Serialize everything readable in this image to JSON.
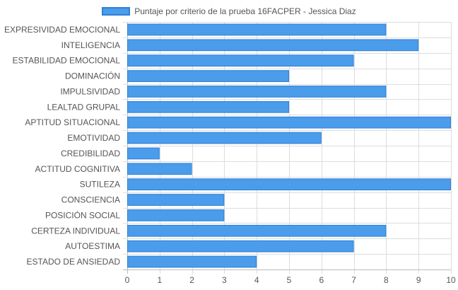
{
  "chart_data": {
    "type": "bar",
    "orientation": "horizontal",
    "legend": {
      "position": "top",
      "label": "Puntaje por criterio de la prueba 16FACPER - Jessica Diaz"
    },
    "categories": [
      "EXPRESIVIDAD EMOCIONAL",
      "INTELIGENCIA",
      "ESTABILIDAD EMOCIONAL",
      "DOMINACIÓN",
      "IMPULSIVIDAD",
      "LEALTAD GRUPAL",
      "APTITUD SITUACIONAL",
      "EMOTIVIDAD",
      "CREDIBILIDAD",
      "ACTITUD COGNITIVA",
      "SUTILEZA",
      "CONSCIENCIA",
      "POSICIÓN SOCIAL",
      "CERTEZA INDIVIDUAL",
      "AUTOESTIMA",
      "ESTADO DE ANSIEDAD"
    ],
    "series": [
      {
        "name": "Puntaje por criterio de la prueba 16FACPER - Jessica Diaz",
        "values": [
          8,
          9,
          7,
          5,
          8,
          5,
          10,
          6,
          1,
          2,
          10,
          3,
          3,
          8,
          7,
          4
        ]
      }
    ],
    "xlim": [
      0,
      10
    ],
    "x_ticks": [
      "0",
      "1",
      "2",
      "3",
      "4",
      "5",
      "6",
      "7",
      "8",
      "9",
      "10"
    ],
    "grid": true,
    "colors": {
      "bar_fill": "#4b9cea",
      "bar_border": "#2f80d8",
      "grid": "#dddddd",
      "text": "#555555"
    }
  }
}
